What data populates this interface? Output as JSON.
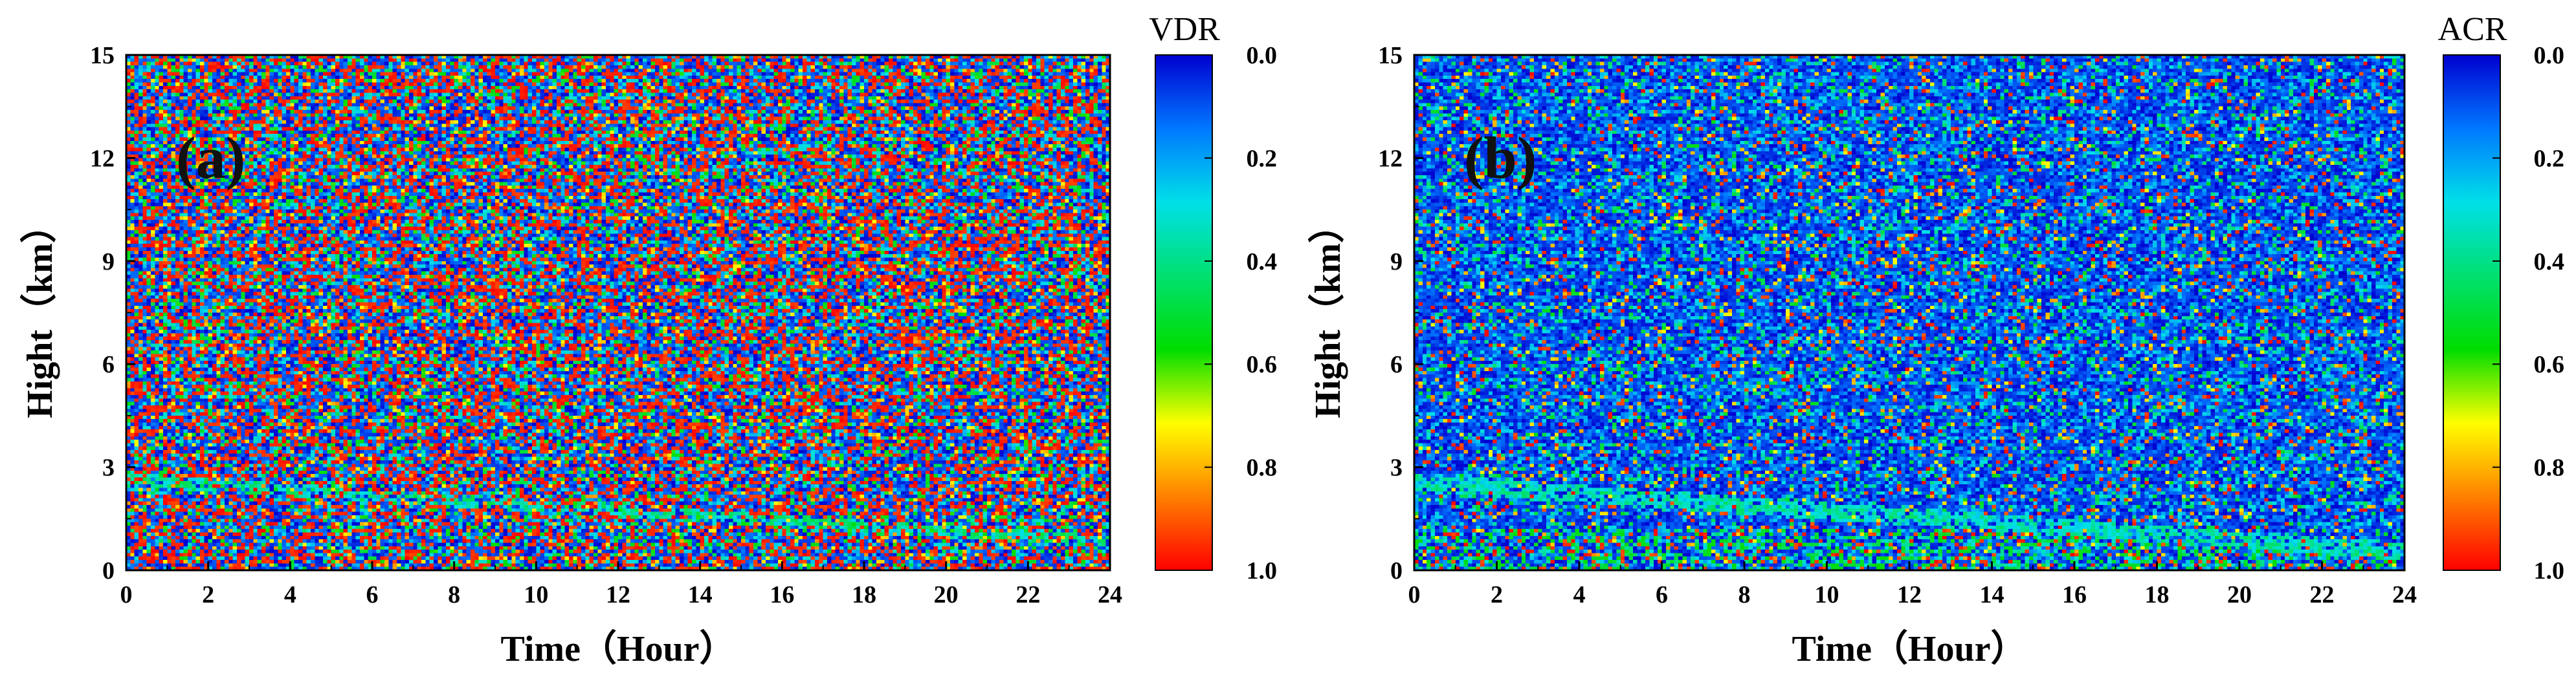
{
  "chart_data": [
    {
      "type": "heatmap",
      "panel_label": "(a)",
      "xlabel": "Time（Hour）",
      "ylabel": "Hight（km）",
      "x_ticks": [
        "0",
        "2",
        "4",
        "6",
        "8",
        "10",
        "12",
        "14",
        "16",
        "18",
        "20",
        "22",
        "24"
      ],
      "y_ticks": [
        "0",
        "3",
        "6",
        "9",
        "12",
        "15"
      ],
      "xlim": [
        0,
        24
      ],
      "ylim": [
        0,
        15
      ],
      "colorbar": {
        "title": "VDR",
        "range": [
          0.0,
          1.0
        ],
        "reversed": true,
        "ticks": [
          "0.0",
          "0.2",
          "0.4",
          "0.6",
          "0.8",
          "1.0"
        ],
        "colors": [
          "#0000d0",
          "#0078ff",
          "#00e0e8",
          "#00e070",
          "#00dd00",
          "#ffff00",
          "#ff8000",
          "#ff0000"
        ]
      },
      "description": "Noisy field of mixed values 0-1 at all heights; faint cyan/green layer descending from ~2.8 km at 0 h to ~1 km at 24 h"
    },
    {
      "type": "heatmap",
      "panel_label": "(b)",
      "xlabel": "Time（Hour）",
      "ylabel": "Hight（km）",
      "x_ticks": [
        "0",
        "2",
        "4",
        "6",
        "8",
        "10",
        "12",
        "14",
        "16",
        "18",
        "20",
        "22",
        "24"
      ],
      "y_ticks": [
        "0",
        "3",
        "6",
        "9",
        "12",
        "15"
      ],
      "xlim": [
        0,
        24
      ],
      "ylim": [
        0,
        15
      ],
      "colorbar": {
        "title": "ACR",
        "range": [
          0.0,
          1.0
        ],
        "reversed": true,
        "ticks": [
          "0.0",
          "0.2",
          "0.4",
          "0.6",
          "0.8",
          "1.0"
        ],
        "colors": [
          "#0000d0",
          "#0078ff",
          "#00e0e8",
          "#00e070",
          "#00dd00",
          "#ffff00",
          "#ff8000",
          "#ff0000"
        ]
      },
      "description": "Mostly low values (blue) with a cyan/green boundary layer descending from ~2.8 km at 0 h to ~0.8 km at 24 h; mixed green/red near surface"
    }
  ]
}
